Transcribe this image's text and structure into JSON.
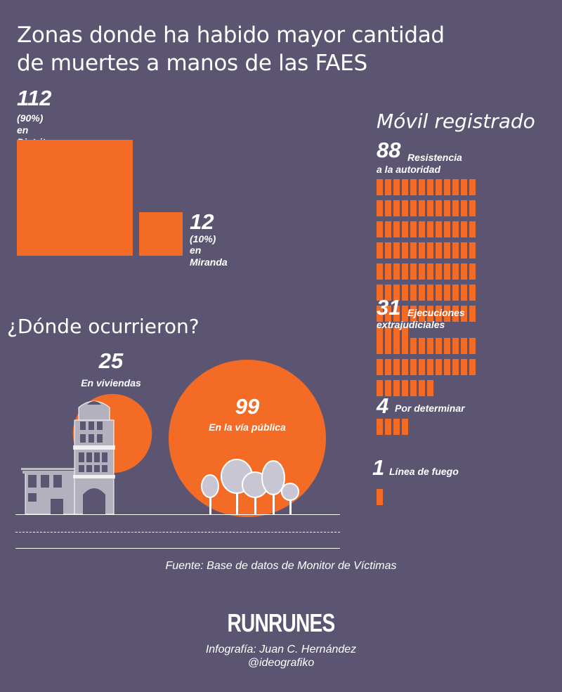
{
  "title": "Zonas donde ha habido mayor cantidad\nde muertes a manos de las FAES",
  "colors": {
    "background": "#5b5572",
    "accent": "#f36b24",
    "building": "#b3b1be",
    "tree": "#c9c6d3"
  },
  "chart_data": [
    {
      "type": "area",
      "title": "",
      "categories": [
        "Distrito Capital",
        "Miranda"
      ],
      "values": [
        112,
        12
      ],
      "percent_labels": [
        "(90%)",
        "(10%)"
      ],
      "value_labels": [
        "112",
        "12"
      ],
      "name_labels": [
        "en Distrito Capital",
        "en Miranda"
      ]
    },
    {
      "type": "bar",
      "title": "Móvil registrado",
      "units_per_row": 12,
      "categories": [
        "Resistencia a la autoridad",
        "Ejecuciones extrajudiciales",
        "Por determinar",
        "Línea de fuego"
      ],
      "values": [
        88,
        31,
        4,
        1
      ],
      "items": [
        {
          "value": "88",
          "label": "Resistencia\na la autoridad"
        },
        {
          "value": "31",
          "label": "Ejecuciones\nextrajudiciales"
        },
        {
          "value": "4",
          "label": "Por determinar"
        },
        {
          "value": "1",
          "label": "Línea de fuego"
        }
      ]
    },
    {
      "type": "scatter",
      "title": "¿Dónde ocurrieron?",
      "categories": [
        "En viviendas",
        "En la vía pública"
      ],
      "values": [
        25,
        99
      ],
      "value_labels": [
        "25",
        "99"
      ],
      "name_labels": [
        "En viviendas",
        "En la vía pública"
      ]
    }
  ],
  "source": "Fuente: Base de datos de Monitor de Víctimas",
  "brand": "RUNRUNES",
  "credit_line1": "Infografía: Juan C. Hernández",
  "credit_line2": "@ideografiko"
}
